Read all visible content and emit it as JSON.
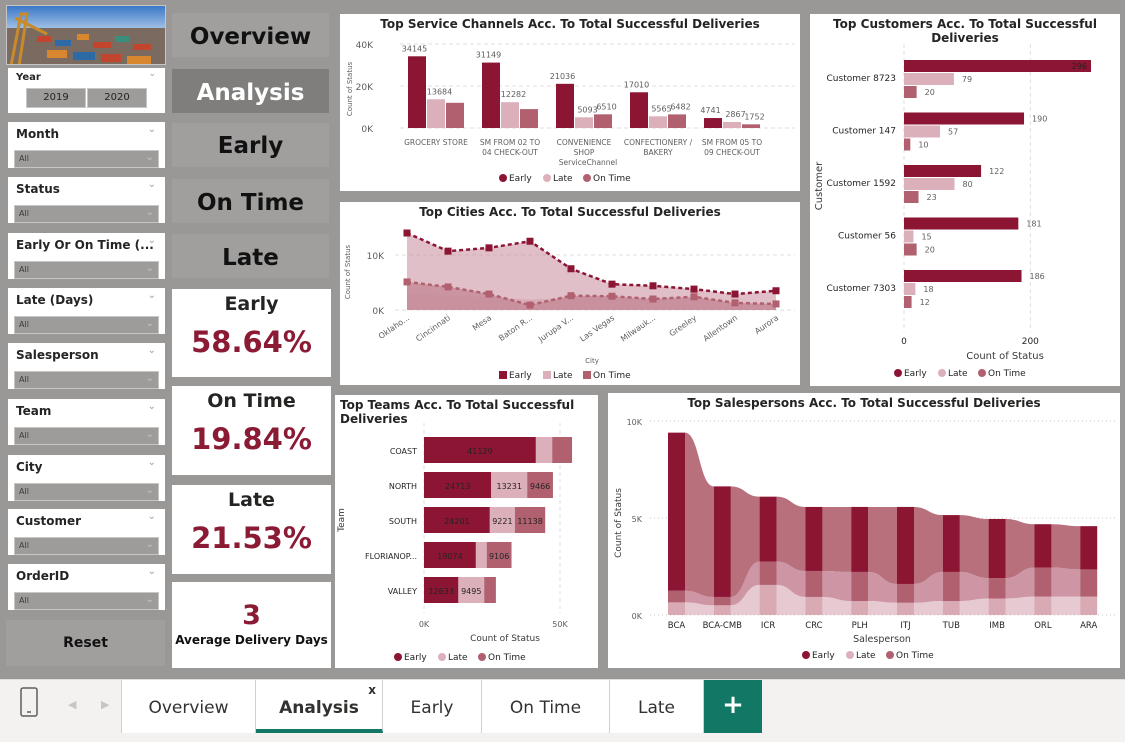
{
  "colors": {
    "early": "#8b1533",
    "late": "#dbb0bb",
    "on_time": "#b0606f",
    "accent_tab": "#117865"
  },
  "year_slicer": {
    "label": "Year",
    "options": [
      "2019",
      "2020"
    ]
  },
  "slicers": [
    {
      "label": "Month",
      "value": "All"
    },
    {
      "label": "Status",
      "value": "All"
    },
    {
      "label": "Early Or On Time (...",
      "value": "All"
    },
    {
      "label": "Late (Days)",
      "value": "All"
    },
    {
      "label": "Salesperson",
      "value": "All"
    },
    {
      "label": "Team",
      "value": "All"
    },
    {
      "label": "City",
      "value": "All"
    },
    {
      "label": "Customer",
      "value": "All"
    },
    {
      "label": "OrderID",
      "value": "All"
    }
  ],
  "reset_label": "Reset",
  "nav_buttons": [
    "Overview",
    "Analysis",
    "Early",
    "On Time",
    "Late"
  ],
  "kpis": [
    {
      "title": "Early",
      "value": "58.64%"
    },
    {
      "title": "On Time",
      "value": "19.84%"
    },
    {
      "title": "Late",
      "value": "21.53%"
    }
  ],
  "avg_delivery": {
    "value": "3",
    "label": "Average Delivery Days"
  },
  "legend": [
    "Early",
    "Late",
    "On Time"
  ],
  "chart_data": [
    {
      "id": "service_channels",
      "type": "bar",
      "title": "Top Service Channels Acc. To Total Successful Deliveries",
      "xlabel": "ServiceChannel",
      "ylabel": "Count of Status",
      "ylim": [
        0,
        40000
      ],
      "yticks": [
        "0K",
        "20K",
        "40K"
      ],
      "categories": [
        [
          "GROCERY STORE"
        ],
        [
          "SM FROM 02 TO",
          "04 CHECK-OUT"
        ],
        [
          "CONVENIENCE",
          "SHOP"
        ],
        [
          "CONFECTIONERY /",
          "BAKERY"
        ],
        [
          "SM FROM 05 TO",
          "09 CHECK-OUT"
        ]
      ],
      "series": [
        {
          "name": "Early",
          "values": [
            34145,
            31149,
            21036,
            17010,
            4741
          ],
          "labels": [
            "34145",
            "31149",
            "21036",
            "17010",
            "4741"
          ]
        },
        {
          "name": "Late",
          "values": [
            13684,
            12282,
            5093,
            5565,
            2867
          ],
          "labels": [
            "13684",
            "12282",
            "5093",
            "5565",
            "2867"
          ]
        },
        {
          "name": "On Time",
          "values": [
            12000,
            9000,
            6510,
            6482,
            1752
          ],
          "labels": [
            "",
            "",
            "6510",
            "6482",
            "1752"
          ]
        }
      ]
    },
    {
      "id": "cities",
      "type": "area",
      "title": "Top Cities Acc. To Total Successful Deliveries",
      "xlabel": "City",
      "ylabel": "Count of Status",
      "ylim": [
        0,
        14500
      ],
      "yticks": [
        "0K",
        "10K"
      ],
      "categories": [
        "Oklaho...",
        "Cincinnati",
        "Mesa",
        "Baton R...",
        "Jurupa V...",
        "Las Vegas",
        "Milwauk...",
        "Greeley",
        "Allentown",
        "Aurora"
      ],
      "series": [
        {
          "name": "Early",
          "values": [
            14000,
            10700,
            11300,
            12500,
            7500,
            4700,
            4400,
            3800,
            2900,
            3500
          ]
        },
        {
          "name": "Late",
          "values": [
            3000,
            2600,
            2300,
            1900,
            2200,
            2100,
            1800,
            1900,
            1300,
            1000
          ]
        },
        {
          "name": "On Time",
          "values": [
            5100,
            4200,
            2900,
            900,
            2600,
            2500,
            2000,
            2400,
            1300,
            1100
          ]
        }
      ]
    },
    {
      "id": "customers",
      "type": "bar",
      "orientation": "horizontal",
      "title": "Top Customers Acc. To Total Successful Deliveries",
      "xlabel": "Count of Status",
      "ylabel": "Customer",
      "xlim": [
        0,
        300
      ],
      "xticks": [
        "0",
        "200"
      ],
      "categories": [
        "Customer 8723",
        "Customer 147",
        "Customer 1592",
        "Customer 56",
        "Customer 7303"
      ],
      "series": [
        {
          "name": "Early",
          "values": [
            296,
            190,
            122,
            181,
            186
          ]
        },
        {
          "name": "Late",
          "values": [
            79,
            57,
            80,
            15,
            18
          ]
        },
        {
          "name": "On Time",
          "values": [
            20,
            10,
            23,
            20,
            12
          ]
        }
      ]
    },
    {
      "id": "teams",
      "type": "bar",
      "orientation": "horizontal-stacked",
      "title": "Top Teams Acc. To Total Successful Deliveries",
      "xlabel": "Count of Status",
      "ylabel": "Team",
      "xlim": [
        0,
        55000
      ],
      "xticks": [
        "0K",
        "50K"
      ],
      "categories": [
        "COAST",
        "NORTH",
        "SOUTH",
        "FLORIANOP...",
        "VALLEY"
      ],
      "series": [
        {
          "name": "Early",
          "values": [
            41129,
            24713,
            24201,
            19074,
            12633
          ],
          "labels": [
            "41129",
            "24713",
            "24201",
            "19074",
            "12633"
          ]
        },
        {
          "name": "Late",
          "values": [
            6000,
            13231,
            9221,
            4000,
            9495
          ],
          "labels": [
            "",
            "13231",
            "9221",
            "",
            "9495"
          ]
        },
        {
          "name": "On Time",
          "values": [
            7300,
            9466,
            11138,
            9106,
            4300
          ],
          "labels": [
            "",
            "9466",
            "11138",
            "9106",
            ""
          ]
        }
      ]
    },
    {
      "id": "salespersons",
      "type": "ribbon",
      "title": "Top Salespersons Acc. To Total Successful Deliveries",
      "xlabel": "Salesperson",
      "ylabel": "Count of Status",
      "ylim": [
        0,
        10000
      ],
      "yticks": [
        "0K",
        "5K",
        "10K"
      ],
      "categories": [
        "BCA",
        "BCA-CMB",
        "ICR",
        "CRC",
        "PLH",
        "ITJ",
        "TUB",
        "IMB",
        "ORL",
        "ARA"
      ],
      "series": [
        {
          "name": "Early",
          "values": [
            8150,
            5700,
            3350,
            3300,
            3350,
            3970,
            2930,
            3050,
            2230,
            2230
          ]
        },
        {
          "name": "Late",
          "values": [
            650,
            500,
            1550,
            930,
            720,
            630,
            720,
            850,
            950,
            950
          ]
        },
        {
          "name": "On Time",
          "values": [
            600,
            430,
            1200,
            1340,
            1500,
            970,
            1500,
            1050,
            1500,
            1400
          ]
        }
      ]
    }
  ],
  "tabs": {
    "items": [
      "Overview",
      "Analysis",
      "Early",
      "On Time",
      "Late"
    ],
    "active": "Analysis",
    "close_label": "x",
    "add_label": "+"
  }
}
